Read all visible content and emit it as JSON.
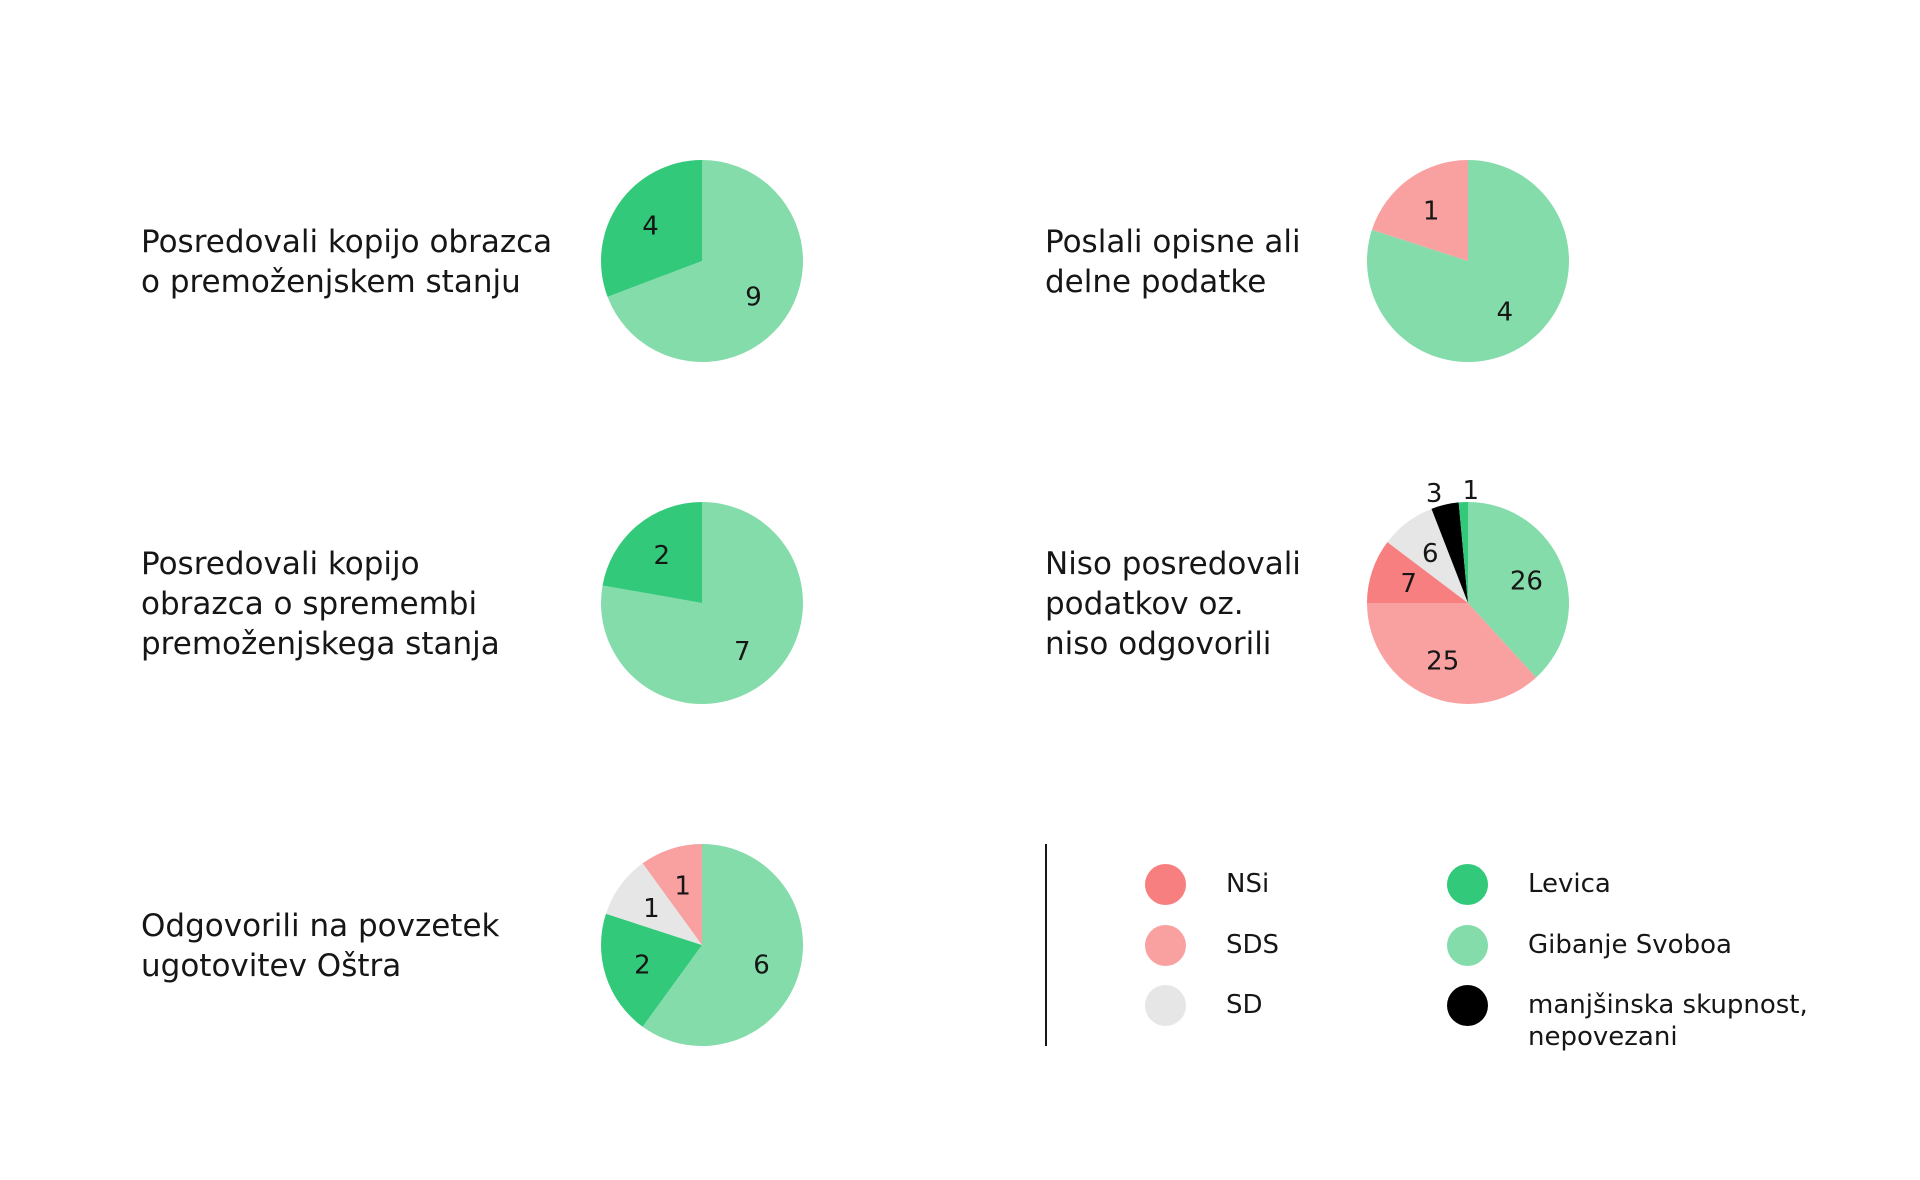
{
  "colors": {
    "NSi": "#f77f7f",
    "SDS": "#f9a1a1",
    "SD": "#e6e6e6",
    "Levica": "#33c97a",
    "Gibanje Svoboda": "#83dcaa",
    "manjsinska": "#000000"
  },
  "chart_data": [
    {
      "type": "pie",
      "title": "Posredovali kopijo obrazca\no premoženjskem stanju",
      "slices": [
        {
          "label": "Gibanje Svoboa",
          "key": "Gibanje Svoboda",
          "value": 9
        },
        {
          "label": "Levica",
          "key": "Levica",
          "value": 4
        }
      ]
    },
    {
      "type": "pie",
      "title": "Poslali opisne ali\ndelne podatke",
      "slices": [
        {
          "label": "Gibanje Svoboa",
          "key": "Gibanje Svoboda",
          "value": 4
        },
        {
          "label": "SDS",
          "key": "SDS",
          "value": 1
        }
      ]
    },
    {
      "type": "pie",
      "title": "Posredovali kopijo\nobrazca o spremembi\npremoženjskega stanja",
      "slices": [
        {
          "label": "Gibanje Svoboa",
          "key": "Gibanje Svoboda",
          "value": 7
        },
        {
          "label": "Levica",
          "key": "Levica",
          "value": 2
        }
      ]
    },
    {
      "type": "pie",
      "title": "Niso posredovali\npodatkov oz.\nniso odgovorili",
      "slices": [
        {
          "label": "Gibanje Svoboa",
          "key": "Gibanje Svoboda",
          "value": 26
        },
        {
          "label": "SDS",
          "key": "SDS",
          "value": 25
        },
        {
          "label": "NSi",
          "key": "NSi",
          "value": 7
        },
        {
          "label": "SD",
          "key": "SD",
          "value": 6
        },
        {
          "label": "manjšinska skupnost, nepovezani",
          "key": "manjsinska",
          "value": 3
        },
        {
          "label": "Levica",
          "key": "Levica",
          "value": 1
        }
      ]
    },
    {
      "type": "pie",
      "title": "Odgovorili na povzetek\nugotovitev Oštra",
      "slices": [
        {
          "label": "Gibanje Svoboa",
          "key": "Gibanje Svoboda",
          "value": 6
        },
        {
          "label": "Levica",
          "key": "Levica",
          "value": 2
        },
        {
          "label": "SD",
          "key": "SD",
          "value": 1
        },
        {
          "label": "SDS",
          "key": "SDS",
          "value": 1
        }
      ]
    }
  ],
  "legend": [
    {
      "label": "NSi",
      "key": "NSi"
    },
    {
      "label": "SDS",
      "key": "SDS"
    },
    {
      "label": "SD",
      "key": "SD"
    },
    {
      "label": "Levica",
      "key": "Levica"
    },
    {
      "label": "Gibanje Svoboa",
      "key": "Gibanje Svoboda"
    },
    {
      "label": "manjšinska skupnost,\nnepovezani",
      "key": "manjsinska"
    }
  ]
}
